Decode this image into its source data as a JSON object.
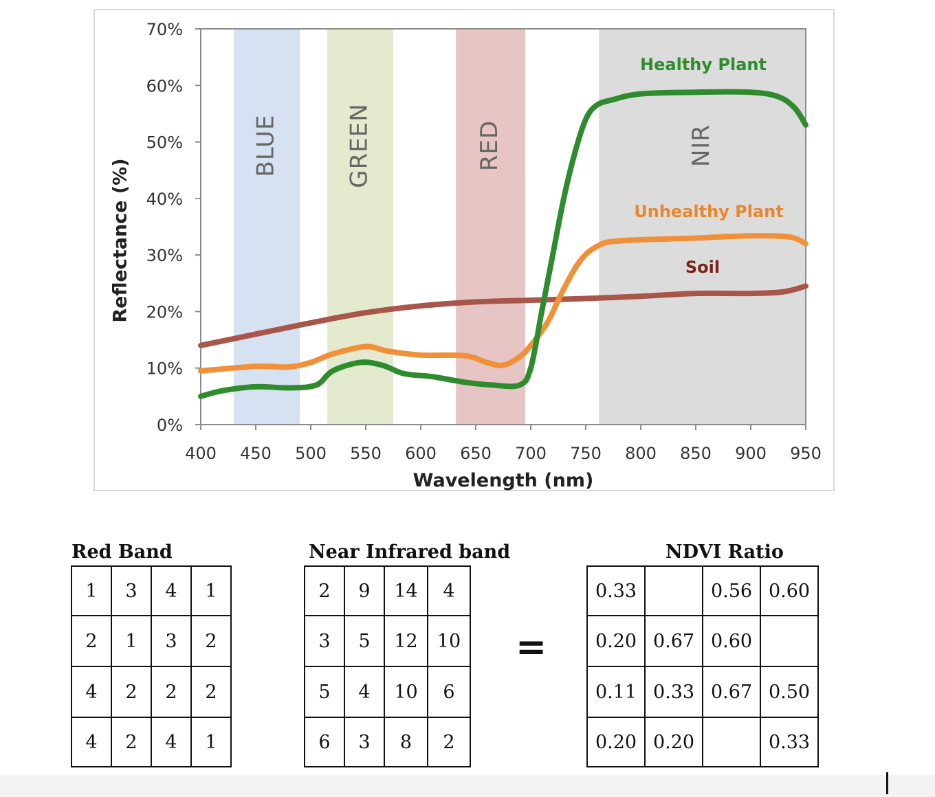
{
  "chart_data": {
    "type": "line",
    "xlabel": "Wavelength (nm)",
    "ylabel": "Reflectance (%)",
    "xlim": [
      400,
      950
    ],
    "ylim": [
      0,
      70
    ],
    "x_ticks": [
      400,
      450,
      500,
      550,
      600,
      650,
      700,
      750,
      800,
      850,
      900,
      950
    ],
    "y_ticks": [
      0,
      10,
      20,
      30,
      40,
      50,
      60,
      70
    ],
    "y_tick_labels": [
      "0%",
      "10%",
      "20%",
      "30%",
      "40%",
      "50%",
      "60%",
      "70%"
    ],
    "grid": false,
    "bands": [
      {
        "label": "BLUE",
        "from": 430,
        "to": 490,
        "color": "#d6e1f1"
      },
      {
        "label": "GREEN",
        "from": 515,
        "to": 575,
        "color": "#e3eacd"
      },
      {
        "label": "RED",
        "from": 632,
        "to": 695,
        "color": "#e7c5c4"
      },
      {
        "label": "NIR",
        "from": 762,
        "to": 950,
        "color": "#dcdcdc"
      }
    ],
    "series": [
      {
        "name": "Healthy Plant",
        "color": "#2e8b2e",
        "points": [
          [
            400,
            5
          ],
          [
            420,
            6
          ],
          [
            450,
            6.7
          ],
          [
            480,
            6.5
          ],
          [
            505,
            7
          ],
          [
            520,
            9.5
          ],
          [
            545,
            11
          ],
          [
            565,
            10.5
          ],
          [
            585,
            9
          ],
          [
            610,
            8.5
          ],
          [
            640,
            7.5
          ],
          [
            665,
            7
          ],
          [
            690,
            7
          ],
          [
            700,
            10
          ],
          [
            710,
            20
          ],
          [
            720,
            30
          ],
          [
            730,
            40
          ],
          [
            740,
            48
          ],
          [
            750,
            54
          ],
          [
            760,
            56.5
          ],
          [
            775,
            57.5
          ],
          [
            800,
            58.5
          ],
          [
            850,
            58.8
          ],
          [
            900,
            58.8
          ],
          [
            925,
            58
          ],
          [
            940,
            56
          ],
          [
            950,
            53
          ]
        ]
      },
      {
        "name": "Unhealthy Plant",
        "color": "#f0913a",
        "points": [
          [
            400,
            9.5
          ],
          [
            450,
            10.3
          ],
          [
            480,
            10.2
          ],
          [
            500,
            11
          ],
          [
            520,
            12.5
          ],
          [
            550,
            13.8
          ],
          [
            570,
            13
          ],
          [
            600,
            12.3
          ],
          [
            640,
            12.2
          ],
          [
            660,
            11
          ],
          [
            675,
            10.5
          ],
          [
            690,
            12
          ],
          [
            700,
            14
          ],
          [
            715,
            18
          ],
          [
            730,
            24
          ],
          [
            745,
            29
          ],
          [
            760,
            31.5
          ],
          [
            780,
            32.5
          ],
          [
            850,
            33
          ],
          [
            900,
            33.4
          ],
          [
            935,
            33.2
          ],
          [
            950,
            32
          ]
        ]
      },
      {
        "name": "Soil",
        "color": "#a8554a",
        "points": [
          [
            400,
            14
          ],
          [
            450,
            16
          ],
          [
            500,
            18
          ],
          [
            550,
            19.8
          ],
          [
            600,
            21
          ],
          [
            650,
            21.7
          ],
          [
            700,
            22
          ],
          [
            750,
            22.3
          ],
          [
            800,
            22.7
          ],
          [
            850,
            23.2
          ],
          [
            900,
            23.2
          ],
          [
            930,
            23.5
          ],
          [
            950,
            24.5
          ]
        ]
      }
    ]
  },
  "tables": {
    "red_band": {
      "title": "Red Band",
      "rows": [
        [
          "1",
          "3",
          "4",
          "1"
        ],
        [
          "2",
          "1",
          "3",
          "2"
        ],
        [
          "4",
          "2",
          "2",
          "2"
        ],
        [
          "4",
          "2",
          "4",
          "1"
        ]
      ]
    },
    "nir_band": {
      "title": "Near Infrared band",
      "rows": [
        [
          "2",
          "9",
          "14",
          "4"
        ],
        [
          "3",
          "5",
          "12",
          "10"
        ],
        [
          "5",
          "4",
          "10",
          "6"
        ],
        [
          "6",
          "3",
          "8",
          "2"
        ]
      ]
    },
    "ndvi": {
      "title": "NDVI Ratio",
      "rows": [
        [
          "0.33",
          "",
          "0.56",
          "0.60"
        ],
        [
          "0.20",
          "0.67",
          "0.60",
          ""
        ],
        [
          "0.11",
          "0.33",
          "0.67",
          "0.50"
        ],
        [
          "0.20",
          "0.20",
          "",
          "0.33"
        ]
      ]
    },
    "equals": "="
  }
}
